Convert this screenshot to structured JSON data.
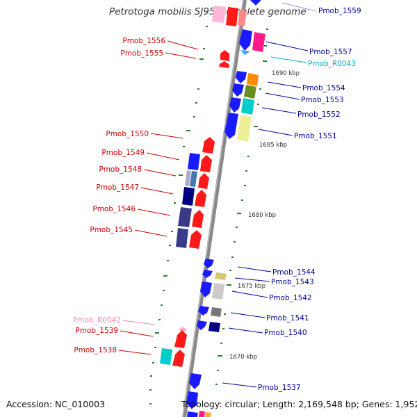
{
  "header": {
    "title": "Petrotoga mobilis SJ95, complete genome"
  },
  "footer": {
    "accession": "Accession: NC_010003",
    "summary": "Topology: circular; Length: 2,169,548 bp; Genes: 1,952"
  },
  "colors": {
    "left_label": "#cc0000",
    "right_label": "#000099",
    "rna_cyan": "#00aacc",
    "rna_pink": "#ee88bb",
    "axis": "#888888",
    "tick": "#2e7d32"
  },
  "kbp_marks": [
    "1690 kbp",
    "1685 kbp",
    "1680 kbp",
    "1675 kbp",
    "1670 kbp"
  ],
  "right_genes": [
    "Pmob_1559",
    "Pmob_1557",
    "Pmob_R0043",
    "Pmob_1554",
    "Pmob_1553",
    "Pmob_1552",
    "Pmob_1551",
    "Pmob_1544",
    "Pmob_1543",
    "Pmob_1542",
    "Pmob_1541",
    "Pmob_1540",
    "Pmob_1537"
  ],
  "left_genes": [
    "Pmob_1556",
    "Pmob_1555",
    "Pmob_1550",
    "Pmob_1549",
    "Pmob_1548",
    "Pmob_1547",
    "Pmob_1546",
    "Pmob_1545",
    "Pmob_R0042",
    "Pmob_1539",
    "Pmob_1538"
  ]
}
